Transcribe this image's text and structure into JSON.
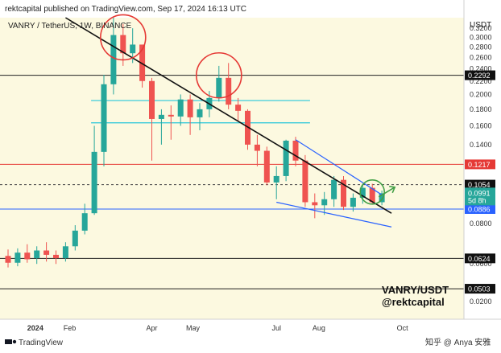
{
  "header": {
    "published": "rektcapital published on TradingView.com, Sep 17, 2024 16:13 UTC"
  },
  "chart_data": {
    "type": "candlestick",
    "title": "VANRY / TetherUS, 1W, BINANCE",
    "y_unit": "USDT",
    "y_scale": "log",
    "ylim": [
      0.0405,
      0.345
    ],
    "y_ticks": [
      "0.3200",
      "0.3000",
      "0.2800",
      "0.2600",
      "0.2400",
      "0.2200",
      "0.2000",
      "0.1800",
      "0.1600",
      "0.1400",
      "0.1200",
      "0.1000",
      "0.0800",
      "0.0600",
      "0.0400",
      "0.0200"
    ],
    "x_labels": [
      {
        "label": "2024",
        "date": "2024-01-01"
      },
      {
        "label": "Feb",
        "date": "2024-02-01"
      },
      {
        "label": "Apr",
        "date": "2024-04-01"
      },
      {
        "label": "May",
        "date": "2024-05-01"
      },
      {
        "label": "Jul",
        "date": "2024-07-01"
      },
      {
        "label": "Aug",
        "date": "2024-08-01"
      },
      {
        "label": "Oct",
        "date": "2024-10-01"
      }
    ],
    "candles": [
      {
        "date": "2023-12-18",
        "o": 0.0635,
        "h": 0.0665,
        "l": 0.0585,
        "c": 0.0605
      },
      {
        "date": "2023-12-25",
        "o": 0.0605,
        "h": 0.067,
        "l": 0.059,
        "c": 0.065
      },
      {
        "date": "2024-01-01",
        "o": 0.065,
        "h": 0.069,
        "l": 0.0605,
        "c": 0.062
      },
      {
        "date": "2024-01-08",
        "o": 0.0625,
        "h": 0.068,
        "l": 0.06,
        "c": 0.066
      },
      {
        "date": "2024-01-15",
        "o": 0.066,
        "h": 0.07,
        "l": 0.061,
        "c": 0.064
      },
      {
        "date": "2024-01-22",
        "o": 0.064,
        "h": 0.066,
        "l": 0.06,
        "c": 0.0625
      },
      {
        "date": "2024-01-29",
        "o": 0.0625,
        "h": 0.07,
        "l": 0.061,
        "c": 0.068
      },
      {
        "date": "2024-02-05",
        "o": 0.068,
        "h": 0.079,
        "l": 0.066,
        "c": 0.076
      },
      {
        "date": "2024-02-12",
        "o": 0.076,
        "h": 0.092,
        "l": 0.074,
        "c": 0.086
      },
      {
        "date": "2024-02-19",
        "o": 0.086,
        "h": 0.16,
        "l": 0.085,
        "c": 0.133
      },
      {
        "date": "2024-02-26",
        "o": 0.133,
        "h": 0.23,
        "l": 0.12,
        "c": 0.215
      },
      {
        "date": "2024-03-04",
        "o": 0.215,
        "h": 0.345,
        "l": 0.2,
        "c": 0.305
      },
      {
        "date": "2024-03-11",
        "o": 0.305,
        "h": 0.33,
        "l": 0.245,
        "c": 0.268
      },
      {
        "date": "2024-03-18",
        "o": 0.268,
        "h": 0.32,
        "l": 0.25,
        "c": 0.285
      },
      {
        "date": "2024-03-25",
        "o": 0.285,
        "h": 0.285,
        "l": 0.21,
        "c": 0.22
      },
      {
        "date": "2024-04-01",
        "o": 0.22,
        "h": 0.225,
        "l": 0.125,
        "c": 0.168
      },
      {
        "date": "2024-04-08",
        "o": 0.168,
        "h": 0.18,
        "l": 0.14,
        "c": 0.173
      },
      {
        "date": "2024-04-15",
        "o": 0.173,
        "h": 0.185,
        "l": 0.145,
        "c": 0.171
      },
      {
        "date": "2024-04-22",
        "o": 0.171,
        "h": 0.2,
        "l": 0.16,
        "c": 0.193
      },
      {
        "date": "2024-04-29",
        "o": 0.193,
        "h": 0.2,
        "l": 0.15,
        "c": 0.17
      },
      {
        "date": "2024-05-06",
        "o": 0.17,
        "h": 0.188,
        "l": 0.155,
        "c": 0.18
      },
      {
        "date": "2024-05-13",
        "o": 0.18,
        "h": 0.205,
        "l": 0.17,
        "c": 0.195
      },
      {
        "date": "2024-05-20",
        "o": 0.195,
        "h": 0.245,
        "l": 0.19,
        "c": 0.225
      },
      {
        "date": "2024-05-27",
        "o": 0.225,
        "h": 0.25,
        "l": 0.18,
        "c": 0.186
      },
      {
        "date": "2024-06-03",
        "o": 0.186,
        "h": 0.195,
        "l": 0.165,
        "c": 0.178
      },
      {
        "date": "2024-06-10",
        "o": 0.178,
        "h": 0.18,
        "l": 0.135,
        "c": 0.14
      },
      {
        "date": "2024-06-17",
        "o": 0.14,
        "h": 0.15,
        "l": 0.12,
        "c": 0.134
      },
      {
        "date": "2024-06-24",
        "o": 0.134,
        "h": 0.138,
        "l": 0.105,
        "c": 0.107
      },
      {
        "date": "2024-07-01",
        "o": 0.107,
        "h": 0.12,
        "l": 0.095,
        "c": 0.112
      },
      {
        "date": "2024-07-08",
        "o": 0.112,
        "h": 0.145,
        "l": 0.108,
        "c": 0.144
      },
      {
        "date": "2024-07-15",
        "o": 0.144,
        "h": 0.148,
        "l": 0.12,
        "c": 0.125
      },
      {
        "date": "2024-07-22",
        "o": 0.125,
        "h": 0.13,
        "l": 0.09,
        "c": 0.093
      },
      {
        "date": "2024-07-29",
        "o": 0.093,
        "h": 0.099,
        "l": 0.083,
        "c": 0.091
      },
      {
        "date": "2024-08-05",
        "o": 0.091,
        "h": 0.1,
        "l": 0.085,
        "c": 0.095
      },
      {
        "date": "2024-08-12",
        "o": 0.095,
        "h": 0.112,
        "l": 0.09,
        "c": 0.109
      },
      {
        "date": "2024-08-19",
        "o": 0.109,
        "h": 0.112,
        "l": 0.088,
        "c": 0.09
      },
      {
        "date": "2024-08-26",
        "o": 0.09,
        "h": 0.099,
        "l": 0.087,
        "c": 0.096
      },
      {
        "date": "2024-09-02",
        "o": 0.096,
        "h": 0.106,
        "l": 0.092,
        "c": 0.103
      },
      {
        "date": "2024-09-09",
        "o": 0.103,
        "h": 0.106,
        "l": 0.092,
        "c": 0.093
      },
      {
        "date": "2024-09-16",
        "o": 0.093,
        "h": 0.101,
        "l": 0.091,
        "c": 0.0991
      }
    ],
    "horizontal_levels": [
      {
        "value": 0.2292,
        "label": "0.2292",
        "color": "#222222",
        "tag_bg": "#111111",
        "tag_fg": "#ffffff"
      },
      {
        "value": 0.1217,
        "label": "0.1217",
        "color": "#e53935",
        "tag_bg": "#e53935",
        "tag_fg": "#ffffff"
      },
      {
        "value": 0.1054,
        "label": "0.1054",
        "color": "#444444",
        "tag_bg": "#111111",
        "tag_fg": "#ffffff",
        "dashed": true
      },
      {
        "value": 0.0886,
        "label": "0.0886",
        "color": "#2962ff",
        "tag_bg": "#2962ff",
        "tag_fg": "#ffffff"
      },
      {
        "value": 0.0624,
        "label": "0.0624",
        "color": "#222222",
        "tag_bg": "#111111",
        "tag_fg": "#ffffff"
      },
      {
        "value": 0.0503,
        "label": "0.0503",
        "color": "#222222",
        "tag_bg": "#111111",
        "tag_fg": "#ffffff"
      }
    ],
    "range_lines": [
      {
        "value": 0.1915,
        "from": "2024-02-19",
        "to": "2024-07-22",
        "color": "#26c6da"
      },
      {
        "value": 0.1635,
        "from": "2024-02-19",
        "to": "2024-07-22",
        "color": "#26c6da"
      }
    ],
    "current_price": {
      "value": "0.0991",
      "countdown": "5d 8h",
      "color": "#26a69a"
    },
    "trendlines": [
      {
        "from": {
          "date": "2024-01-29",
          "value": 0.345
        },
        "to": {
          "date": "2024-09-23",
          "value": 0.086
        },
        "color": "#111111",
        "width": 1.6
      },
      {
        "from": {
          "date": "2024-07-15",
          "value": 0.145
        },
        "to": {
          "date": "2024-09-16",
          "value": 0.098
        },
        "color": "#2962ff",
        "width": 1.2
      },
      {
        "from": {
          "date": "2024-07-01",
          "value": 0.093
        },
        "to": {
          "date": "2024-09-23",
          "value": 0.078
        },
        "color": "#2962ff",
        "width": 1.2
      }
    ],
    "circles": [
      {
        "date": "2024-03-11",
        "value": 0.3,
        "color": "#e53935"
      },
      {
        "date": "2024-05-20",
        "value": 0.229,
        "color": "#e53935"
      },
      {
        "date": "2024-09-09",
        "value": 0.1,
        "color": "#43a047"
      }
    ],
    "up_color": "#26a69a",
    "down_color": "#ef5350",
    "background": "#fcf9e0"
  },
  "watermark": {
    "line1": "VANRY/USDT",
    "line2": "@rektcapital"
  },
  "footer": {
    "logo_text": "TradingView",
    "credit": "知乎 @ Anya 安雅"
  }
}
